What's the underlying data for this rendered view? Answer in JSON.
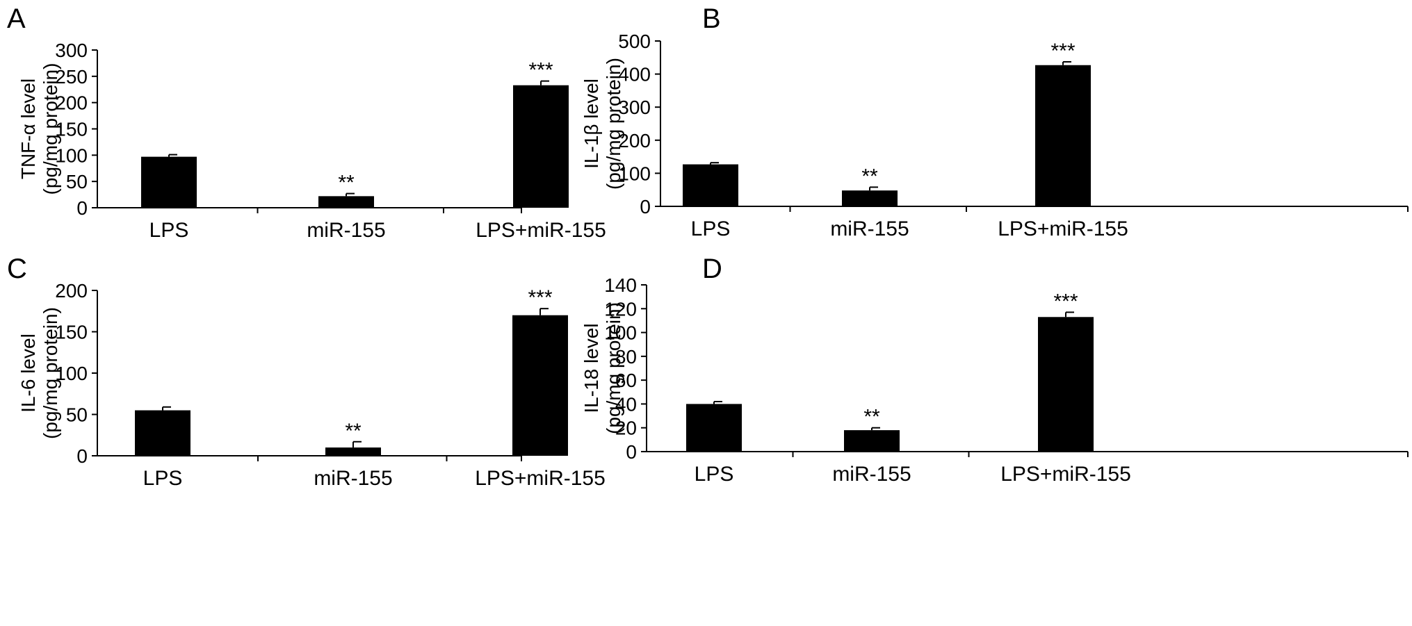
{
  "chart_data": [
    {
      "panel": "A",
      "type": "bar",
      "categories": [
        "LPS",
        "miR-155",
        "LPS+miR-155"
      ],
      "values": [
        97,
        22,
        233
      ],
      "errors": [
        4,
        5,
        8
      ],
      "significance": [
        "",
        "**",
        "***"
      ],
      "ylabel_lines": [
        "TNF-α level",
        "(pg/mg protein)"
      ],
      "xlabel": "",
      "ylim": [
        0,
        300
      ],
      "yticks": [
        0,
        50,
        100,
        150,
        200,
        250,
        300
      ],
      "grid": false,
      "legend": "none"
    },
    {
      "panel": "B",
      "type": "bar",
      "categories": [
        "LPS",
        "miR-155",
        "LPS+miR-155"
      ],
      "values": [
        127,
        48,
        427
      ],
      "errors": [
        5,
        10,
        10
      ],
      "significance": [
        "",
        "**",
        "***"
      ],
      "ylabel_lines": [
        "IL-1β level",
        "(pg/mg protein)"
      ],
      "xlabel": "",
      "ylim": [
        0,
        500
      ],
      "yticks": [
        0,
        100,
        200,
        300,
        400,
        500
      ],
      "grid": false,
      "legend": "none"
    },
    {
      "panel": "C",
      "type": "bar",
      "categories": [
        "LPS",
        "miR-155",
        "LPS+miR-155"
      ],
      "values": [
        55,
        10,
        170
      ],
      "errors": [
        4,
        7,
        8
      ],
      "significance": [
        "",
        "**",
        "***"
      ],
      "ylabel_lines": [
        "IL-6 level",
        "(pg/mg protein)"
      ],
      "xlabel": "",
      "ylim": [
        0,
        200
      ],
      "yticks": [
        0,
        50,
        100,
        150,
        200
      ],
      "grid": false,
      "legend": "none"
    },
    {
      "panel": "D",
      "type": "bar",
      "categories": [
        "LPS",
        "miR-155",
        "LPS+miR-155"
      ],
      "values": [
        40,
        18,
        113
      ],
      "errors": [
        2,
        2,
        4
      ],
      "significance": [
        "",
        "**",
        "***"
      ],
      "ylabel_lines": [
        "IL-18 level",
        "(pg/mg protein)"
      ],
      "xlabel": "",
      "ylim": [
        0,
        140
      ],
      "yticks": [
        0,
        20,
        40,
        60,
        80,
        100,
        120,
        140
      ],
      "grid": false,
      "legend": "none"
    }
  ],
  "colors": {
    "bar": "#000000",
    "axis": "#000000",
    "background": "#ffffff"
  }
}
